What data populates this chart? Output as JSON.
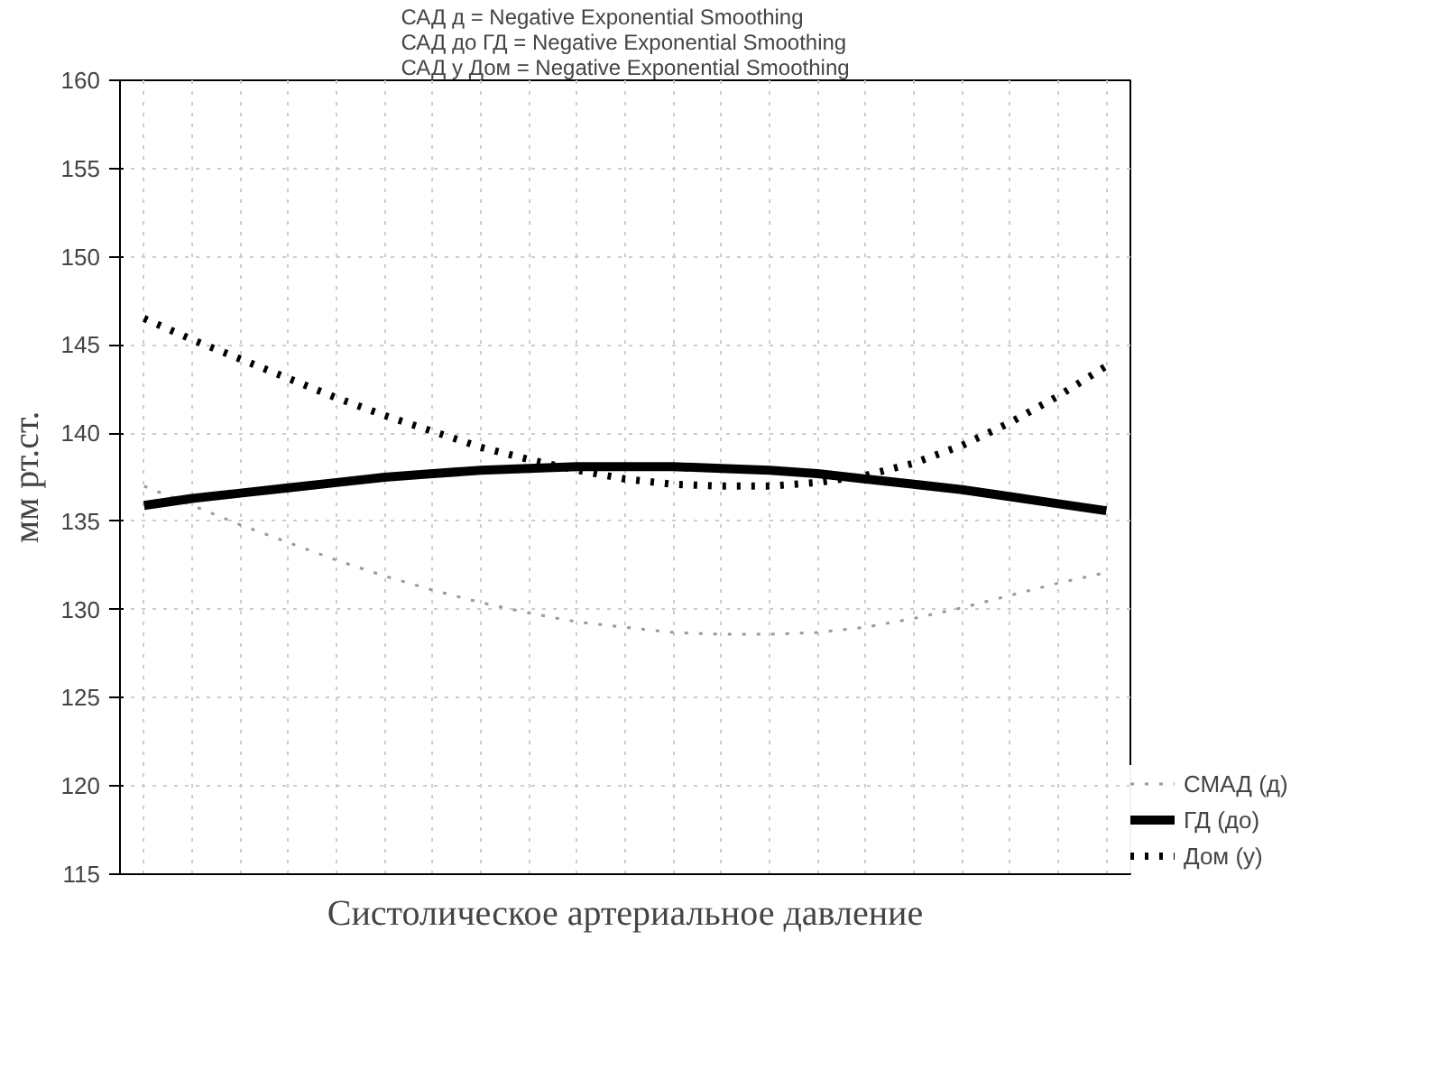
{
  "chart_data": {
    "type": "line",
    "title": "САД д = Negative Exponential Smoothing\nСАД до ГД = Negative Exponential Smoothing\nСАД у Дом = Negative Exponential Smoothing",
    "xlabel": "Систолическое артериальное давление",
    "ylabel": "мм рт.ст.",
    "categories": [
      null,
      null,
      null,
      null,
      null,
      null,
      null,
      null,
      null,
      null,
      null,
      null,
      null,
      null,
      null,
      null,
      null,
      null,
      null,
      null,
      null
    ],
    "series": [
      {
        "name": "СМАД (д)",
        "color": "#9a9a9a",
        "line_style": "dotted",
        "values": [
          137.0,
          135.9,
          134.8,
          133.8,
          132.8,
          131.9,
          131.1,
          130.4,
          129.8,
          129.3,
          129.0,
          128.7,
          128.6,
          128.6,
          128.7,
          129.0,
          129.5,
          130.1,
          130.8,
          131.5,
          132.1
        ]
      },
      {
        "name": "ГД (до)",
        "color": "#000000",
        "line_style": "solid",
        "values": [
          135.9,
          136.3,
          136.6,
          136.9,
          137.2,
          137.5,
          137.7,
          137.9,
          138.0,
          138.1,
          138.1,
          138.1,
          138.0,
          137.9,
          137.7,
          137.4,
          137.1,
          136.8,
          136.4,
          136.0,
          135.6
        ]
      },
      {
        "name": "Дом (у)",
        "color": "#000000",
        "line_style": "dotted",
        "values": [
          146.5,
          145.3,
          144.2,
          143.1,
          142.0,
          141.0,
          140.1,
          139.2,
          138.5,
          137.9,
          137.4,
          137.1,
          137.0,
          137.0,
          137.2,
          137.6,
          138.3,
          139.3,
          140.6,
          142.1,
          143.8
        ]
      }
    ],
    "ylim": [
      115,
      160
    ],
    "yticks": [
      115,
      120,
      125,
      130,
      135,
      140,
      145,
      150,
      155,
      160
    ],
    "grid": true,
    "legend": "bottom right",
    "marker": "none"
  }
}
